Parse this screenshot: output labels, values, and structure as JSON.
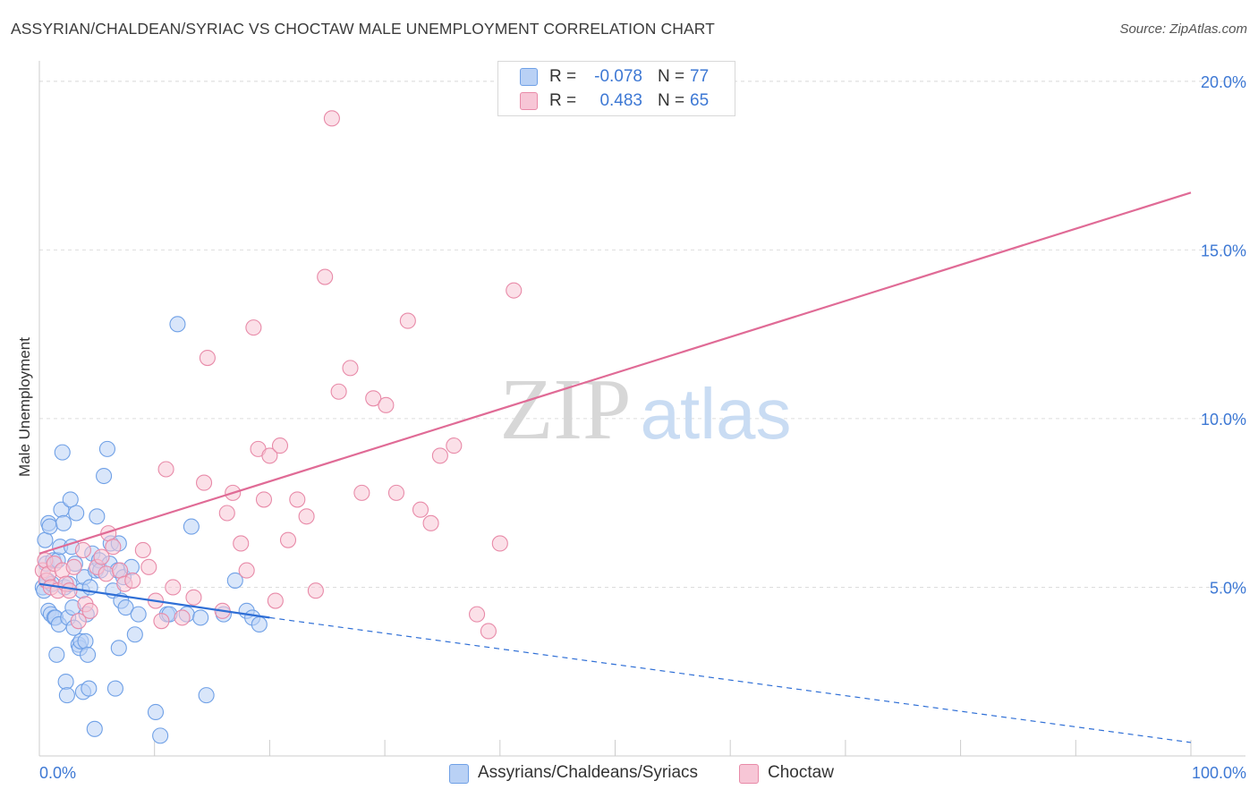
{
  "header": {
    "title": "ASSYRIAN/CHALDEAN/SYRIAC VS CHOCTAW MALE UNEMPLOYMENT CORRELATION CHART",
    "source": "Source: ZipAtlas.com"
  },
  "watermark": {
    "part1": "ZIP",
    "part2": "atlas"
  },
  "colors": {
    "blue": "#6fa0e6",
    "blue_fill": "#b9d1f5",
    "blue_line": "#2f6fd6",
    "pink": "#e88aa8",
    "pink_fill": "#f7c6d6",
    "pink_line": "#e06b96",
    "value_text": "#3d78d4"
  },
  "legend": {
    "rows": [
      {
        "r_label": "R =",
        "r_value": "-0.078",
        "n_label": "N =",
        "n_value": "77"
      },
      {
        "r_label": "R =",
        "r_value": "0.483",
        "n_label": "N =",
        "n_value": "65"
      }
    ]
  },
  "chart_data": {
    "type": "scatter",
    "title": "ASSYRIAN/CHALDEAN/SYRIAC VS CHOCTAW MALE UNEMPLOYMENT CORRELATION CHART",
    "xlabel": "",
    "ylabel": "Male Unemployment",
    "xlim": [
      0,
      100
    ],
    "ylim": [
      0,
      20.5
    ],
    "x_tick_labels": [
      "0.0%",
      "100.0%"
    ],
    "y_ticks": [
      5,
      10,
      15,
      20
    ],
    "y_tick_labels": [
      "5.0%",
      "10.0%",
      "15.0%",
      "20.0%"
    ],
    "grid": true,
    "legend_position": "top-center",
    "series": [
      {
        "name": "Assyrians/Chaldeans/Syriacs",
        "color": "#6fa0e6",
        "R": -0.078,
        "N": 77,
        "trend": {
          "x": [
            0,
            20
          ],
          "y": [
            5.1,
            4.1
          ],
          "dashed_to": [
            100,
            0.4
          ]
        },
        "points": [
          [
            0.3,
            5.0
          ],
          [
            0.4,
            4.9
          ],
          [
            0.5,
            6.4
          ],
          [
            0.6,
            5.7
          ],
          [
            0.7,
            5.2
          ],
          [
            0.8,
            6.9
          ],
          [
            0.8,
            4.3
          ],
          [
            0.9,
            6.8
          ],
          [
            1.0,
            4.2
          ],
          [
            1.1,
            5.1
          ],
          [
            1.2,
            5.8
          ],
          [
            1.3,
            4.1
          ],
          [
            1.4,
            4.1
          ],
          [
            1.5,
            3.0
          ],
          [
            1.6,
            5.8
          ],
          [
            1.7,
            3.9
          ],
          [
            1.8,
            6.2
          ],
          [
            1.9,
            7.3
          ],
          [
            2.0,
            9.0
          ],
          [
            2.1,
            6.9
          ],
          [
            2.2,
            5.0
          ],
          [
            2.3,
            2.2
          ],
          [
            2.4,
            1.8
          ],
          [
            2.5,
            4.1
          ],
          [
            2.6,
            5.1
          ],
          [
            2.7,
            7.6
          ],
          [
            2.8,
            6.2
          ],
          [
            2.9,
            4.4
          ],
          [
            3.0,
            3.8
          ],
          [
            3.1,
            5.7
          ],
          [
            3.2,
            7.2
          ],
          [
            3.4,
            3.3
          ],
          [
            3.5,
            3.2
          ],
          [
            3.6,
            3.4
          ],
          [
            3.7,
            4.9
          ],
          [
            3.8,
            1.9
          ],
          [
            3.9,
            5.3
          ],
          [
            4.0,
            3.4
          ],
          [
            4.1,
            4.2
          ],
          [
            4.2,
            3.0
          ],
          [
            4.3,
            2.0
          ],
          [
            4.4,
            5.0
          ],
          [
            4.6,
            6.0
          ],
          [
            4.8,
            0.8
          ],
          [
            4.9,
            5.5
          ],
          [
            5.0,
            7.1
          ],
          [
            5.2,
            5.8
          ],
          [
            5.3,
            5.5
          ],
          [
            5.6,
            8.3
          ],
          [
            5.9,
            9.1
          ],
          [
            6.1,
            5.7
          ],
          [
            6.2,
            6.3
          ],
          [
            6.4,
            4.9
          ],
          [
            6.6,
            2.0
          ],
          [
            6.8,
            5.5
          ],
          [
            6.9,
            3.2
          ],
          [
            6.9,
            6.3
          ],
          [
            7.1,
            4.6
          ],
          [
            7.3,
            5.3
          ],
          [
            7.5,
            4.4
          ],
          [
            8.0,
            5.6
          ],
          [
            8.3,
            3.6
          ],
          [
            8.6,
            4.2
          ],
          [
            10.1,
            1.3
          ],
          [
            10.5,
            0.6
          ],
          [
            11.1,
            4.2
          ],
          [
            11.3,
            4.2
          ],
          [
            12.0,
            12.8
          ],
          [
            12.8,
            4.2
          ],
          [
            13.2,
            6.8
          ],
          [
            14.0,
            4.1
          ],
          [
            14.5,
            1.8
          ],
          [
            16.0,
            4.2
          ],
          [
            17.0,
            5.2
          ],
          [
            18.0,
            4.3
          ],
          [
            18.5,
            4.1
          ],
          [
            19.1,
            3.9
          ]
        ]
      },
      {
        "name": "Choctaw",
        "color": "#e88aa8",
        "R": 0.483,
        "N": 65,
        "trend": {
          "x": [
            0,
            100
          ],
          "y": [
            6.0,
            16.7
          ]
        },
        "points": [
          [
            0.3,
            5.5
          ],
          [
            0.5,
            5.8
          ],
          [
            0.6,
            5.2
          ],
          [
            0.8,
            5.4
          ],
          [
            1.0,
            5.0
          ],
          [
            1.3,
            5.7
          ],
          [
            1.6,
            4.9
          ],
          [
            2.0,
            5.5
          ],
          [
            2.3,
            5.1
          ],
          [
            2.6,
            4.9
          ],
          [
            3.0,
            5.6
          ],
          [
            3.4,
            4.0
          ],
          [
            3.8,
            6.1
          ],
          [
            4.0,
            4.5
          ],
          [
            4.4,
            4.3
          ],
          [
            5.0,
            5.6
          ],
          [
            5.4,
            5.9
          ],
          [
            5.8,
            5.4
          ],
          [
            6.0,
            6.6
          ],
          [
            6.4,
            6.2
          ],
          [
            7.0,
            5.5
          ],
          [
            7.4,
            5.1
          ],
          [
            8.1,
            5.2
          ],
          [
            9.0,
            6.1
          ],
          [
            9.5,
            5.6
          ],
          [
            10.1,
            4.6
          ],
          [
            10.6,
            4.0
          ],
          [
            11.0,
            8.5
          ],
          [
            11.6,
            5.0
          ],
          [
            12.4,
            4.1
          ],
          [
            13.4,
            4.7
          ],
          [
            14.3,
            8.1
          ],
          [
            14.6,
            11.8
          ],
          [
            15.9,
            4.3
          ],
          [
            16.3,
            7.2
          ],
          [
            16.8,
            7.8
          ],
          [
            17.5,
            6.3
          ],
          [
            18.0,
            5.5
          ],
          [
            18.6,
            12.7
          ],
          [
            19.0,
            9.1
          ],
          [
            19.5,
            7.6
          ],
          [
            20.0,
            8.9
          ],
          [
            20.5,
            4.6
          ],
          [
            20.9,
            9.2
          ],
          [
            21.6,
            6.4
          ],
          [
            22.4,
            7.6
          ],
          [
            23.2,
            7.1
          ],
          [
            24.0,
            4.9
          ],
          [
            24.8,
            14.2
          ],
          [
            25.4,
            18.9
          ],
          [
            26.0,
            10.8
          ],
          [
            27.0,
            11.5
          ],
          [
            28.0,
            7.8
          ],
          [
            29.0,
            10.6
          ],
          [
            30.1,
            10.4
          ],
          [
            31.0,
            7.8
          ],
          [
            32.0,
            12.9
          ],
          [
            33.1,
            7.3
          ],
          [
            34.0,
            6.9
          ],
          [
            34.8,
            8.9
          ],
          [
            36.0,
            9.2
          ],
          [
            38.0,
            4.2
          ],
          [
            39.0,
            3.7
          ],
          [
            40.0,
            6.3
          ],
          [
            41.2,
            13.8
          ]
        ]
      }
    ]
  },
  "bottom_legend": {
    "items": [
      {
        "label": "Assyrians/Chaldeans/Syriacs"
      },
      {
        "label": "Choctaw"
      }
    ]
  }
}
